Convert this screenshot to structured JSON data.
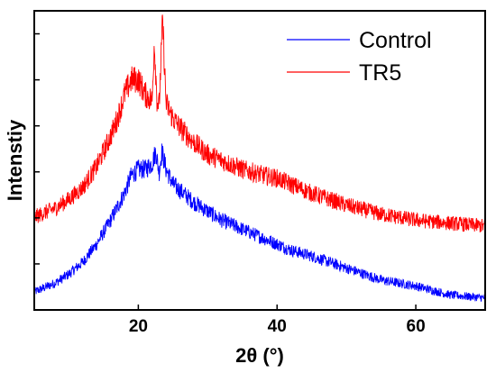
{
  "chart_data": {
    "type": "line",
    "title": "",
    "xlabel": "2θ (°)",
    "ylabel": "Intenstiy",
    "xlim": [
      5,
      70
    ],
    "ylim": [
      0,
      100
    ],
    "x_ticks": [
      20,
      40,
      60
    ],
    "y_ticks_labeled": false,
    "grid": false,
    "legend_position": "top-right",
    "series": [
      {
        "name": "Control",
        "color": "#0000ff",
        "x": [
          5,
          8,
          10,
          12,
          14,
          16,
          18,
          19,
          20,
          21,
          22,
          22.5,
          23,
          23.4,
          24,
          25,
          26,
          28,
          30,
          32,
          35,
          38,
          40,
          42,
          45,
          50,
          55,
          60,
          65,
          70
        ],
        "y": [
          6,
          9,
          12,
          16,
          22,
          30,
          39,
          45,
          47,
          47,
          49,
          53,
          46,
          53,
          47,
          42,
          40,
          36,
          33,
          30,
          27,
          24,
          22,
          20,
          18,
          14,
          10,
          8,
          5,
          4
        ]
      },
      {
        "name": "TR5",
        "color": "#ff0000",
        "x": [
          5,
          8,
          10,
          12,
          14,
          16,
          17,
          18,
          19,
          20,
          21,
          22,
          22.3,
          22.7,
          23,
          23.5,
          24,
          25,
          26,
          28,
          30,
          32,
          35,
          38,
          40,
          42,
          45,
          50,
          55,
          60,
          65,
          70
        ],
        "y": [
          31,
          34,
          37,
          41,
          48,
          58,
          64,
          72,
          77,
          77,
          72,
          70,
          90,
          70,
          68,
          97,
          69,
          64,
          61,
          56,
          52,
          50,
          47,
          45,
          44,
          42,
          39,
          35,
          32,
          30,
          29,
          28
        ]
      }
    ]
  }
}
